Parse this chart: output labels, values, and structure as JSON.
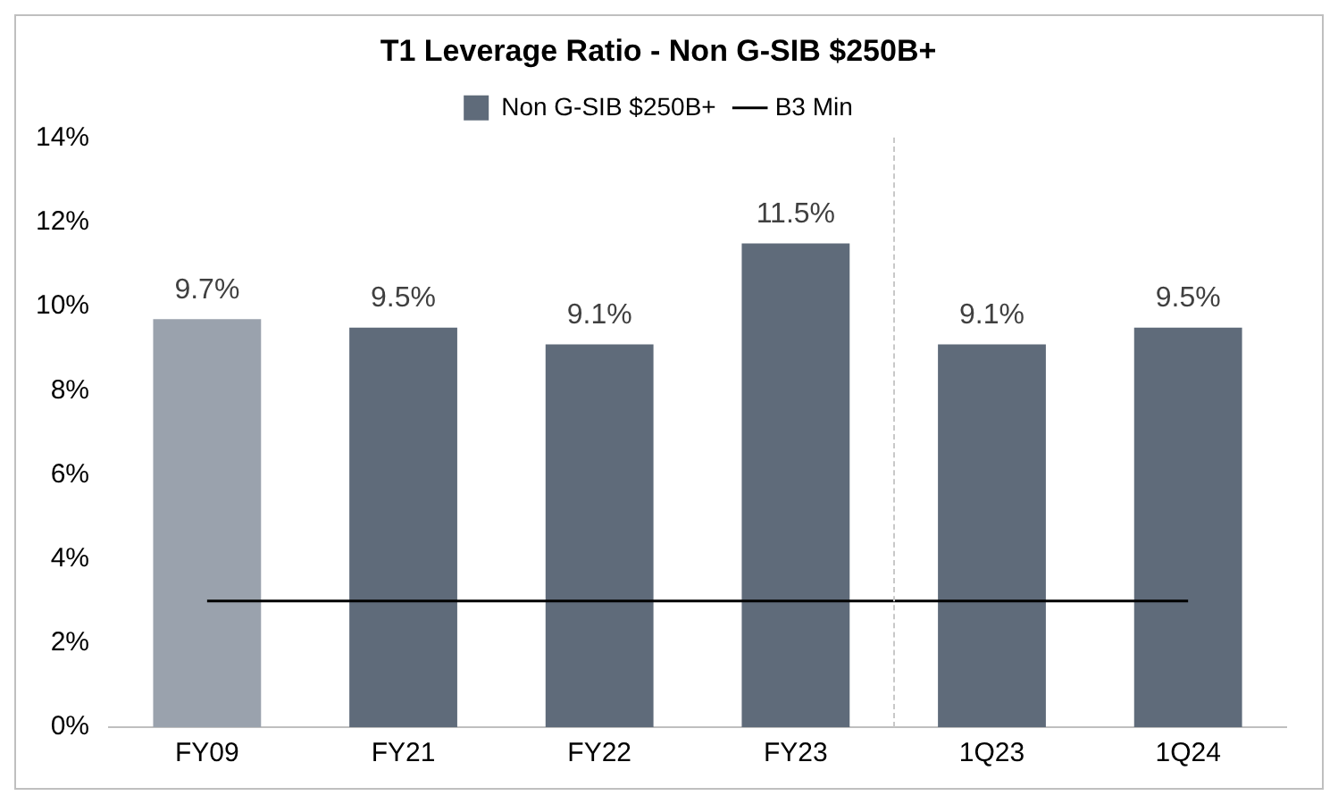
{
  "chart_data": {
    "type": "bar",
    "title": "T1 Leverage Ratio - Non G-SIB $250B+",
    "categories": [
      "FY09",
      "FY21",
      "FY22",
      "FY23",
      "1Q23",
      "1Q24"
    ],
    "series": [
      {
        "name": "Non G-SIB $250B+",
        "color": "#5f6b7a",
        "colors": [
          "#9aa2ad",
          "#5f6b7a",
          "#5f6b7a",
          "#5f6b7a",
          "#5f6b7a",
          "#5f6b7a"
        ],
        "values": [
          9.7,
          9.5,
          9.1,
          11.5,
          9.1,
          9.5
        ],
        "value_labels": [
          "9.7%",
          "9.5%",
          "9.1%",
          "11.5%",
          "9.1%",
          "9.5%"
        ]
      },
      {
        "name": "B3 Min",
        "type": "line",
        "color": "#000000",
        "values": [
          3,
          3,
          3,
          3,
          3,
          3
        ],
        "marker": "none"
      }
    ],
    "ylim": [
      0,
      14
    ],
    "yticks": [
      {
        "value": 0,
        "label": "0%"
      },
      {
        "value": 2,
        "label": "2%"
      },
      {
        "value": 4,
        "label": "4%"
      },
      {
        "value": 6,
        "label": "6%"
      },
      {
        "value": 8,
        "label": "8%"
      },
      {
        "value": 10,
        "label": "10%"
      },
      {
        "value": 12,
        "label": "12%"
      },
      {
        "value": 14,
        "label": "14%"
      }
    ],
    "grid": false,
    "legend": "top"
  }
}
